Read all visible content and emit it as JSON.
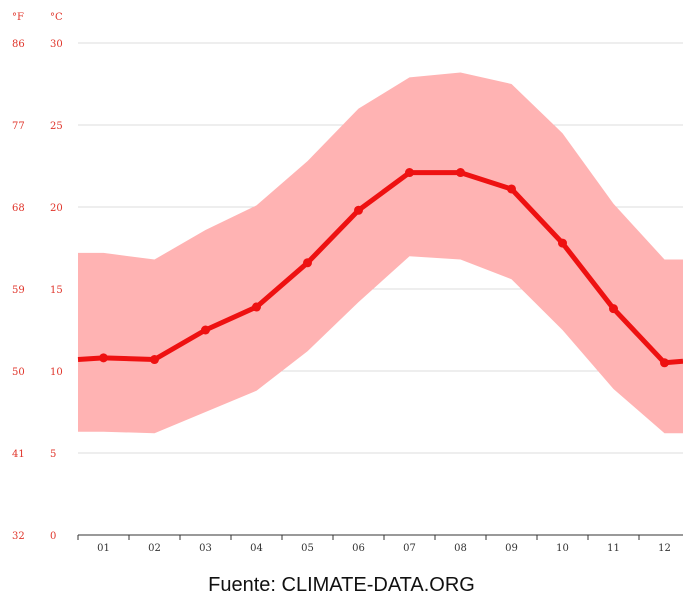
{
  "chart_data": {
    "type": "line",
    "units": {
      "fahrenheit": "°F",
      "celsius": "°C"
    },
    "categories": [
      "01",
      "02",
      "03",
      "04",
      "05",
      "06",
      "07",
      "08",
      "09",
      "10",
      "11",
      "12"
    ],
    "series": [
      {
        "values": [
          10.8,
          10.7,
          12.5,
          13.9,
          16.6,
          19.8,
          22.1,
          22.1,
          21.1,
          17.8,
          13.8,
          10.5
        ]
      }
    ],
    "range_band": {
      "max": [
        17.2,
        16.8,
        18.6,
        20.1,
        22.8,
        26.0,
        27.9,
        28.2,
        27.5,
        24.5,
        20.2,
        16.8
      ],
      "min": [
        6.3,
        6.2,
        7.5,
        8.8,
        11.2,
        14.2,
        17.0,
        16.8,
        15.6,
        12.5,
        8.9,
        6.2
      ]
    },
    "y_ticks_c": [
      "0",
      "5",
      "10",
      "15",
      "20",
      "25",
      "30"
    ],
    "y_ticks_f": [
      "32",
      "41",
      "50",
      "59",
      "68",
      "77",
      "86"
    ],
    "ylim": [
      0,
      30
    ],
    "grid": true,
    "colors": {
      "line": "#ee1111",
      "band": "#ffb3b3",
      "axis_text": "#e0352b",
      "grid": "#dddddd"
    }
  },
  "source_note": "Fuente: CLIMATE-DATA.ORG"
}
